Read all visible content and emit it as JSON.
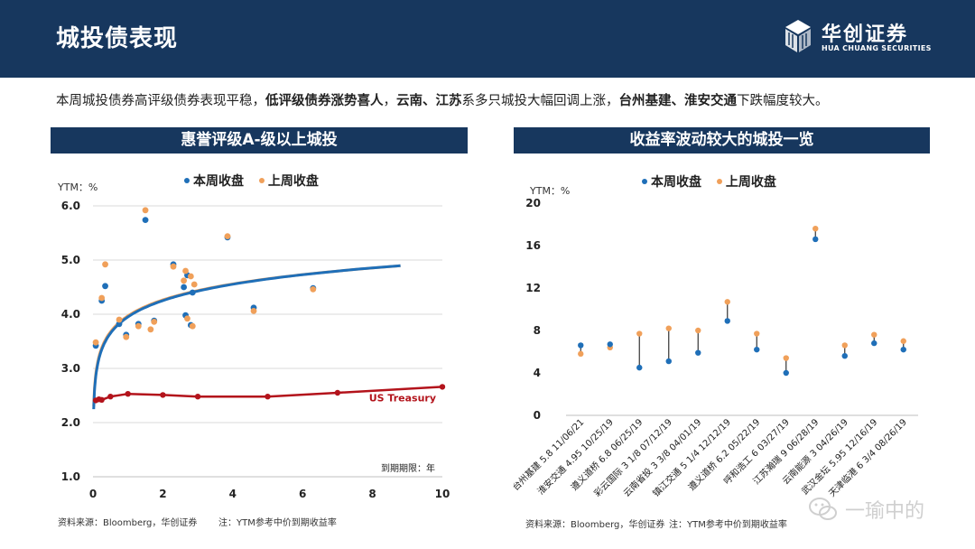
{
  "header": {
    "title": "城投债表现",
    "logo": {
      "cn": "华创证券",
      "en": "HUA CHUANG SECURITIES"
    }
  },
  "summary": {
    "p1": "本周城投债券高评级债券表现平稳，",
    "b1": "低评级债券涨势喜人",
    "p2": "，",
    "b2": "云南、江苏",
    "p3": "系多只城投大幅回调上涨，",
    "b3": "台州基建、淮安交通",
    "p4": "下跌幅度较大。"
  },
  "left_panel": {
    "title": "惠誉评级A-级以上城投",
    "source": "资料来源：Bloomberg，华创证券",
    "note": "注：YTM参考中价到期收益率"
  },
  "right_panel": {
    "title": "收益率波动较大的城投一览",
    "source": "资料来源：Bloomberg，华创证券",
    "note": "注：YTM参考中价到期收益率"
  },
  "watermark": "一瑜中的",
  "colors": {
    "this_week": "#1f6fb8",
    "last_week": "#f0a05a",
    "treasury": "#b3131b",
    "curve_blue": "#1f6fb8",
    "curve_orange": "#f0a05a",
    "header_bg": "#17375e"
  },
  "chart_data": [
    {
      "type": "scatter",
      "ylabel": "YTM：%",
      "xlabel": "到期期限：年",
      "xlim": [
        0,
        10
      ],
      "ylim": [
        1.0,
        6.0
      ],
      "xticks": [
        "0",
        "2",
        "4",
        "6",
        "8",
        "10"
      ],
      "yticks": [
        "1.0",
        "2.0",
        "3.0",
        "4.0",
        "5.0",
        "6.0"
      ],
      "grid": true,
      "legend": [
        "本周收盘",
        "上周收盘"
      ],
      "series": [
        {
          "name": "本周收盘",
          "color": "#1f6fb8",
          "points": [
            [
              0.08,
              3.42
            ],
            [
              0.25,
              4.25
            ],
            [
              0.35,
              4.52
            ],
            [
              0.75,
              3.82
            ],
            [
              0.95,
              3.62
            ],
            [
              1.3,
              3.82
            ],
            [
              1.5,
              5.74
            ],
            [
              1.75,
              3.88
            ],
            [
              2.3,
              4.92
            ],
            [
              2.6,
              4.5
            ],
            [
              2.65,
              3.98
            ],
            [
              2.7,
              4.72
            ],
            [
              2.8,
              3.8
            ],
            [
              2.85,
              4.4
            ],
            [
              3.85,
              5.42
            ],
            [
              4.6,
              4.12
            ],
            [
              6.3,
              4.48
            ]
          ]
        },
        {
          "name": "上周收盘",
          "color": "#f0a05a",
          "points": [
            [
              0.08,
              3.48
            ],
            [
              0.25,
              4.3
            ],
            [
              0.35,
              4.92
            ],
            [
              0.75,
              3.9
            ],
            [
              0.95,
              3.58
            ],
            [
              1.3,
              3.78
            ],
            [
              1.5,
              5.92
            ],
            [
              1.65,
              3.72
            ],
            [
              1.75,
              3.86
            ],
            [
              2.3,
              4.88
            ],
            [
              2.6,
              4.62
            ],
            [
              2.65,
              4.8
            ],
            [
              2.7,
              3.92
            ],
            [
              2.8,
              4.7
            ],
            [
              2.85,
              3.78
            ],
            [
              2.9,
              4.55
            ],
            [
              3.85,
              5.44
            ],
            [
              4.6,
              4.06
            ],
            [
              6.3,
              4.46
            ]
          ]
        }
      ],
      "fit_curves": [
        {
          "color": "#f0a05a",
          "a": 3.97,
          "b": 0.425,
          "x0": 0.02,
          "x1": 8.8
        },
        {
          "color": "#1f6fb8",
          "a": 3.95,
          "b": 0.435,
          "x0": 0.02,
          "x1": 8.8
        }
      ],
      "treasury": {
        "name": "US Treasury",
        "color": "#b3131b",
        "x": [
          0.08,
          0.17,
          0.25,
          0.5,
          1,
          2,
          3,
          5,
          7,
          10
        ],
        "y": [
          2.41,
          2.43,
          2.42,
          2.48,
          2.53,
          2.51,
          2.48,
          2.48,
          2.55,
          2.66
        ]
      }
    },
    {
      "type": "scatter",
      "ylabel": "YTM：%",
      "ylim": [
        0,
        20
      ],
      "yticks": [
        "0",
        "4",
        "8",
        "12",
        "16",
        "20"
      ],
      "grid": false,
      "legend": [
        "本周收盘",
        "上周收盘"
      ],
      "categories": [
        "台州基建 5.8 11/06/21",
        "淮安交通 4.95 10/25/19",
        "遵义道桥 6.8 06/25/19",
        "彩云国际 3 1/8 07/12/19",
        "云南省投 3 3/8 04/01/19",
        "镇江交通 5 1/4 12/12/19",
        "遵义道桥 6.2 05/22/19",
        "呼和浩工 6 03/27/19",
        "江苏瀚瑞 9 06/28/19",
        "云南能源 3 04/26/19",
        "武汉金坛 5.95 12/16/19",
        "天津临港 6 3/4 08/26/19"
      ],
      "series": [
        {
          "name": "本周收盘",
          "color": "#1f6fb8",
          "values": [
            6.6,
            6.7,
            4.5,
            5.1,
            5.9,
            8.9,
            6.2,
            4.0,
            16.6,
            5.6,
            6.8,
            6.2
          ]
        },
        {
          "name": "上周收盘",
          "color": "#f0a05a",
          "values": [
            5.8,
            6.4,
            7.7,
            8.2,
            8.0,
            10.7,
            7.7,
            5.4,
            17.6,
            6.6,
            7.6,
            7.0
          ]
        }
      ]
    }
  ]
}
